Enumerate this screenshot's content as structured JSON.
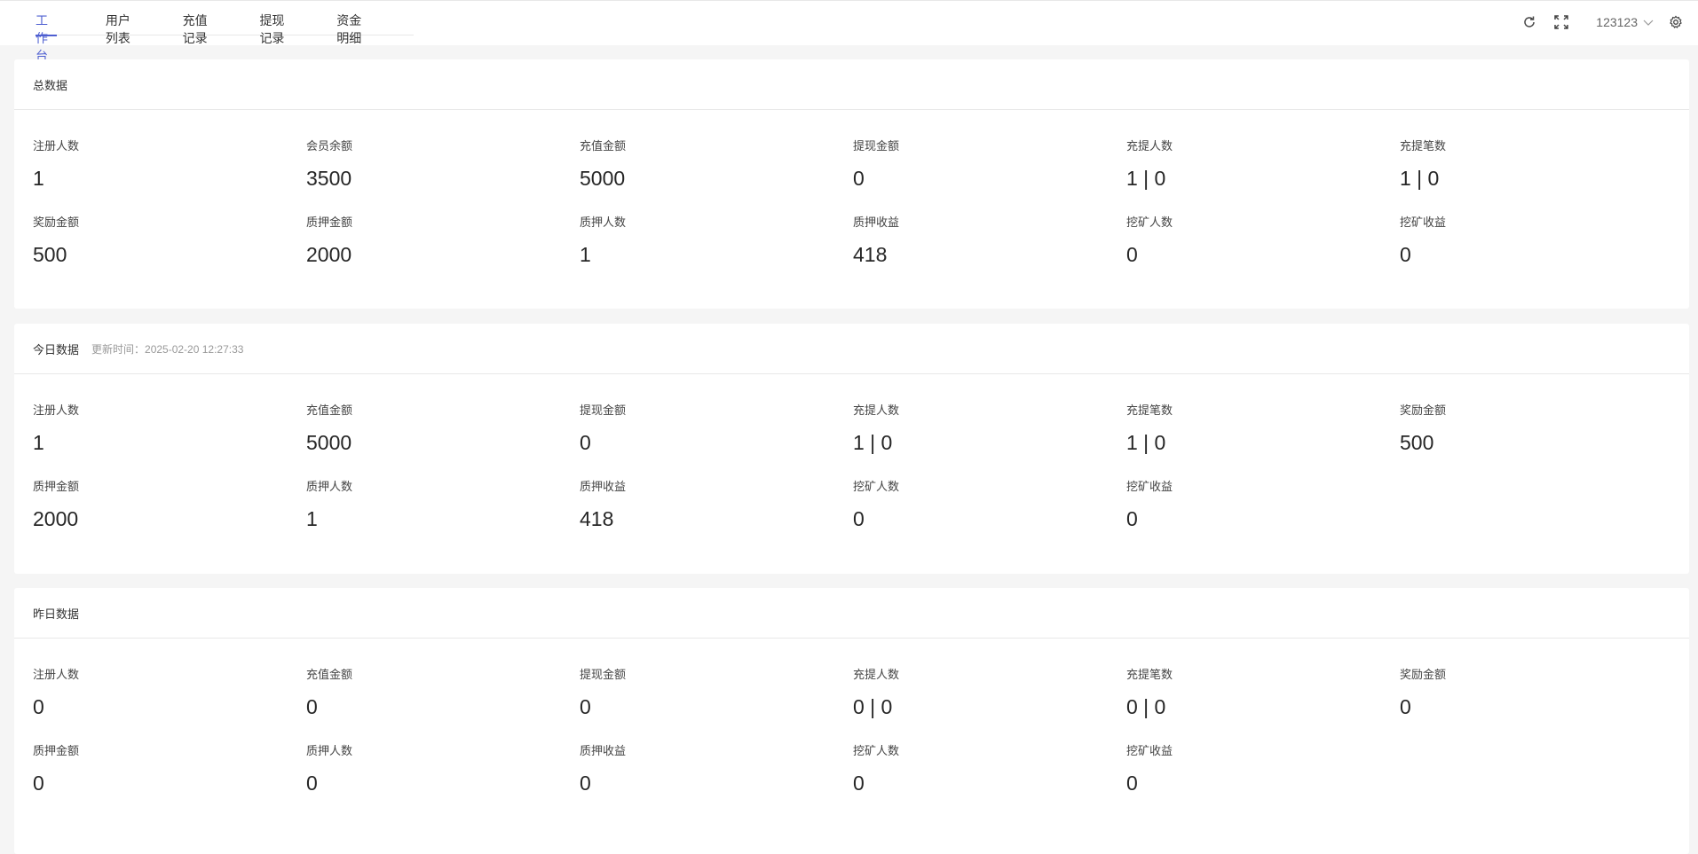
{
  "tabs": [
    "工作台",
    "用户列表",
    "充值记录",
    "提现记录",
    "资金明细"
  ],
  "active_tab": 0,
  "header": {
    "username": "123123"
  },
  "cards": [
    {
      "title": "总数据",
      "subtitle": "",
      "stats": [
        {
          "label": "注册人数",
          "value": "1"
        },
        {
          "label": "会员余额",
          "value": "3500"
        },
        {
          "label": "充值金额",
          "value": "5000"
        },
        {
          "label": "提现金额",
          "value": "0"
        },
        {
          "label": "充提人数",
          "value": "1 | 0"
        },
        {
          "label": "充提笔数",
          "value": "1 | 0"
        },
        {
          "label": "奖励金额",
          "value": "500"
        },
        {
          "label": "质押金额",
          "value": "2000"
        },
        {
          "label": "质押人数",
          "value": "1"
        },
        {
          "label": "质押收益",
          "value": "418"
        },
        {
          "label": "挖矿人数",
          "value": "0"
        },
        {
          "label": "挖矿收益",
          "value": "0"
        }
      ]
    },
    {
      "title": "今日数据",
      "subtitle": "更新时间：2025-02-20 12:27:33",
      "stats": [
        {
          "label": "注册人数",
          "value": "1"
        },
        {
          "label": "充值金额",
          "value": "5000"
        },
        {
          "label": "提现金额",
          "value": "0"
        },
        {
          "label": "充提人数",
          "value": "1 | 0"
        },
        {
          "label": "充提笔数",
          "value": "1 | 0"
        },
        {
          "label": "奖励金额",
          "value": "500"
        },
        {
          "label": "质押金额",
          "value": "2000"
        },
        {
          "label": "质押人数",
          "value": "1"
        },
        {
          "label": "质押收益",
          "value": "418"
        },
        {
          "label": "挖矿人数",
          "value": "0"
        },
        {
          "label": "挖矿收益",
          "value": "0"
        }
      ]
    },
    {
      "title": "昨日数据",
      "subtitle": "",
      "stats": [
        {
          "label": "注册人数",
          "value": "0"
        },
        {
          "label": "充值金额",
          "value": "0"
        },
        {
          "label": "提现金额",
          "value": "0"
        },
        {
          "label": "充提人数",
          "value": "0 | 0"
        },
        {
          "label": "充提笔数",
          "value": "0 | 0"
        },
        {
          "label": "奖励金额",
          "value": "0"
        },
        {
          "label": "质押金额",
          "value": "0"
        },
        {
          "label": "质押人数",
          "value": "0"
        },
        {
          "label": "质押收益",
          "value": "0"
        },
        {
          "label": "挖矿人数",
          "value": "0"
        },
        {
          "label": "挖矿收益",
          "value": "0"
        }
      ]
    }
  ]
}
